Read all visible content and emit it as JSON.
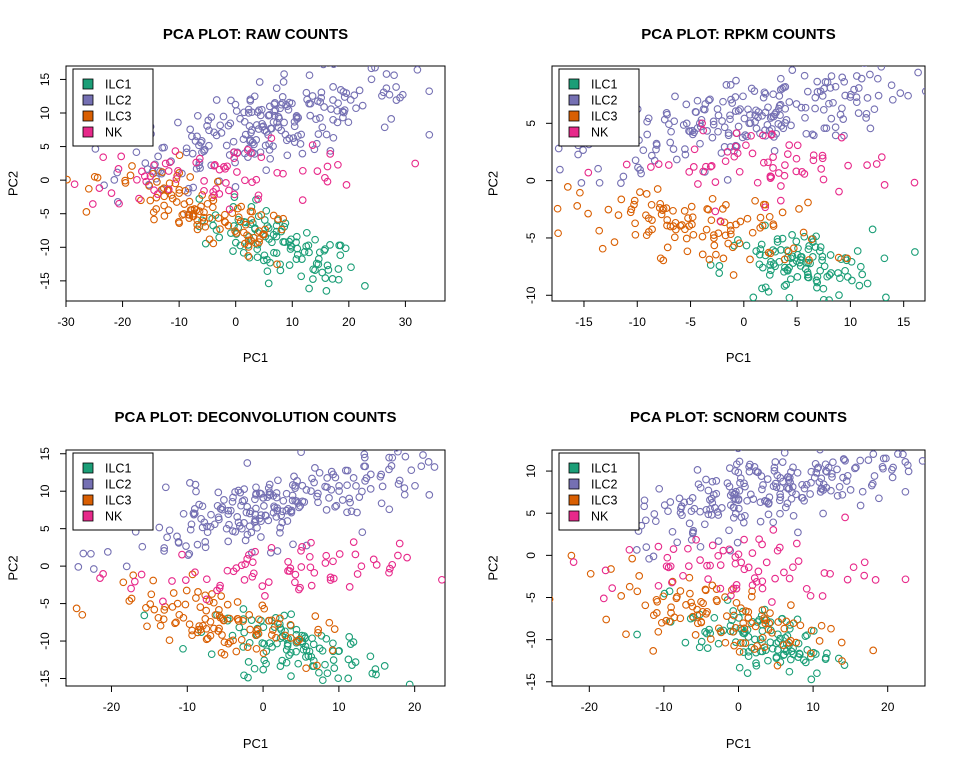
{
  "chart_data": [
    {
      "type": "scatter",
      "title": "PCA PLOT: RAW COUNTS",
      "xlabel": "PC1",
      "ylabel": "PC2",
      "xlim": [
        -30,
        37
      ],
      "ylim": [
        -18,
        17
      ],
      "xticks": [
        -30,
        -20,
        -10,
        0,
        10,
        20,
        30
      ],
      "yticks": [
        -15,
        -10,
        -5,
        0,
        5,
        10,
        15
      ],
      "legend": {
        "position": "top-left",
        "entries": [
          "ILC1",
          "ILC2",
          "ILC3",
          "NK"
        ]
      },
      "series": [
        {
          "name": "ILC1",
          "color": "#1b9e77",
          "n": 110,
          "center": [
            8,
            -10
          ],
          "spread": [
            7,
            2.3
          ],
          "slope": -0.3
        },
        {
          "name": "ILC2",
          "color": "#7570b3",
          "n": 230,
          "center": [
            5,
            8
          ],
          "spread": [
            13,
            3
          ],
          "slope": 0.22
        },
        {
          "name": "ILC3",
          "color": "#d95f02",
          "n": 110,
          "center": [
            -6,
            -5
          ],
          "spread": [
            9,
            2.3
          ],
          "slope": -0.3
        },
        {
          "name": "NK",
          "color": "#e7298a",
          "n": 70,
          "center": [
            -2,
            1
          ],
          "spread": [
            14,
            2.2
          ],
          "slope": 0
        }
      ]
    },
    {
      "type": "scatter",
      "title": "PCA PLOT: RPKM COUNTS",
      "xlabel": "PC1",
      "ylabel": "PC2",
      "xlim": [
        -18,
        17
      ],
      "ylim": [
        -10.5,
        10
      ],
      "xticks": [
        -15,
        -10,
        -5,
        0,
        5,
        10,
        15
      ],
      "yticks": [
        -10,
        -5,
        0,
        5
      ],
      "legend": {
        "position": "top-left",
        "entries": [
          "ILC1",
          "ILC2",
          "ILC3",
          "NK"
        ]
      },
      "series": [
        {
          "name": "ILC1",
          "color": "#1b9e77",
          "n": 110,
          "center": [
            5,
            -7.5
          ],
          "spread": [
            3.5,
            1.6
          ],
          "slope": 0
        },
        {
          "name": "ILC2",
          "color": "#7570b3",
          "n": 230,
          "center": [
            0,
            5.5
          ],
          "spread": [
            8,
            1.8
          ],
          "slope": 0.2
        },
        {
          "name": "ILC3",
          "color": "#d95f02",
          "n": 110,
          "center": [
            -4,
            -4
          ],
          "spread": [
            6,
            1.5
          ],
          "slope": -0.1
        },
        {
          "name": "NK",
          "color": "#e7298a",
          "n": 70,
          "center": [
            1,
            1.5
          ],
          "spread": [
            7,
            1.6
          ],
          "slope": 0
        }
      ]
    },
    {
      "type": "scatter",
      "title": "PCA PLOT: DECONVOLUTION COUNTS",
      "xlabel": "PC1",
      "ylabel": "PC2",
      "xlim": [
        -26,
        24
      ],
      "ylim": [
        -16,
        15.5
      ],
      "xticks": [
        -20,
        -10,
        0,
        10,
        20
      ],
      "yticks": [
        -15,
        -10,
        -5,
        0,
        5,
        10,
        15
      ],
      "legend": {
        "position": "top-left",
        "entries": [
          "ILC1",
          "ILC2",
          "ILC3",
          "NK"
        ]
      },
      "series": [
        {
          "name": "ILC1",
          "color": "#1b9e77",
          "n": 110,
          "center": [
            5,
            -11
          ],
          "spread": [
            5.5,
            1.8
          ],
          "slope": -0.2
        },
        {
          "name": "ILC2",
          "color": "#7570b3",
          "n": 230,
          "center": [
            2,
            8
          ],
          "spread": [
            10,
            2.5
          ],
          "slope": 0.25
        },
        {
          "name": "ILC3",
          "color": "#d95f02",
          "n": 110,
          "center": [
            -6,
            -7
          ],
          "spread": [
            7,
            2
          ],
          "slope": -0.2
        },
        {
          "name": "NK",
          "color": "#e7298a",
          "n": 70,
          "center": [
            0,
            -1
          ],
          "spread": [
            9,
            2
          ],
          "slope": 0
        }
      ]
    },
    {
      "type": "scatter",
      "title": "PCA PLOT: SCNORM COUNTS",
      "xlabel": "PC1",
      "ylabel": "PC2",
      "xlim": [
        -25,
        25
      ],
      "ylim": [
        -15.5,
        12.5
      ],
      "xticks": [
        -20,
        -10,
        0,
        10,
        20
      ],
      "yticks": [
        -15,
        -10,
        -5,
        0,
        5,
        10
      ],
      "legend": {
        "position": "top-left",
        "entries": [
          "ILC1",
          "ILC2",
          "ILC3",
          "NK"
        ]
      },
      "series": [
        {
          "name": "ILC1",
          "color": "#1b9e77",
          "n": 110,
          "center": [
            3,
            -10
          ],
          "spread": [
            5,
            1.8
          ],
          "slope": -0.2
        },
        {
          "name": "ILC2",
          "color": "#7570b3",
          "n": 230,
          "center": [
            5,
            8
          ],
          "spread": [
            10,
            2.3
          ],
          "slope": 0.2
        },
        {
          "name": "ILC3",
          "color": "#d95f02",
          "n": 110,
          "center": [
            -3,
            -7
          ],
          "spread": [
            8,
            2
          ],
          "slope": -0.2
        },
        {
          "name": "NK",
          "color": "#e7298a",
          "n": 70,
          "center": [
            0,
            -1.5
          ],
          "spread": [
            9,
            2.2
          ],
          "slope": 0
        }
      ]
    }
  ]
}
